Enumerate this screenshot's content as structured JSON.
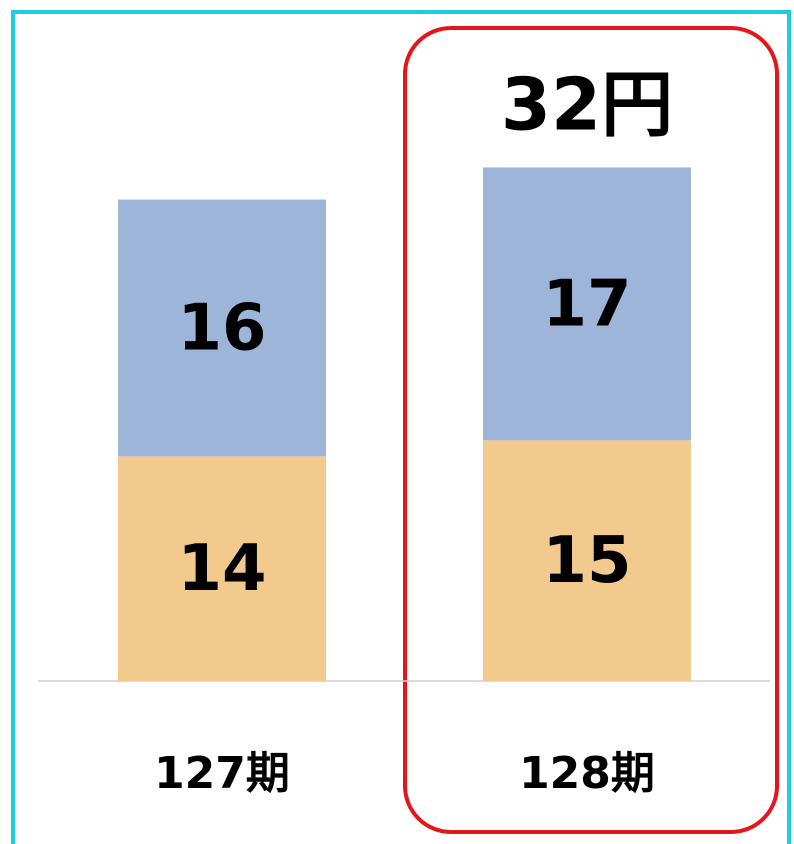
{
  "chart_data": {
    "type": "stacked_bar",
    "categories": [
      "127期",
      "128期"
    ],
    "series": [
      {
        "color": "#f2ca8e",
        "values": [
          14,
          15
        ]
      },
      {
        "color": "#9db5d8",
        "values": [
          16,
          17
        ]
      }
    ],
    "ylim": [
      0,
      42
    ],
    "annotation": "32円"
  }
}
